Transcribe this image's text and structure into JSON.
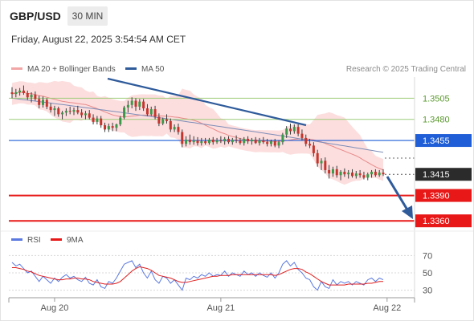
{
  "header": {
    "pair": "GBP/USD",
    "timeframe": "30 MIN",
    "datetime": "Friday, August 22, 2025 3:54:54 AM CET"
  },
  "legend_top": {
    "bollinger": "MA 20 + Bollinger Bands",
    "ma50": "MA 50",
    "credit": "Research © 2025 Trading Central"
  },
  "legend_bottom": {
    "rsi": "RSI",
    "ma9": "9MA"
  },
  "colors": {
    "up": "#3b9a4a",
    "down": "#c4352d",
    "band": "#fcd8d8",
    "ma20": "#e98a8a",
    "ma50": "#7d8db8",
    "resistance": "#9ccc78",
    "pivot": "#1f5ed6",
    "support": "#e81818",
    "arrow": "#2f5b9b",
    "rsi": "#5b79e0",
    "rsi_ma": "#e02020"
  },
  "levels": [
    {
      "price": 1.3505,
      "label": "1.3505",
      "kind": "resistance"
    },
    {
      "price": 1.348,
      "label": "1.3480",
      "kind": "resistance"
    },
    {
      "price": 1.3455,
      "label": "1.3455",
      "kind": "pivot"
    },
    {
      "price": 1.3415,
      "label": "1.3415",
      "kind": "last"
    },
    {
      "price": 1.339,
      "label": "1.3390",
      "kind": "support"
    },
    {
      "price": 1.336,
      "label": "1.3360",
      "kind": "support"
    }
  ],
  "chart_data": {
    "type": "candlestick",
    "x_axis": {
      "ticks": [
        "Aug 20",
        "Aug 21",
        "Aug 22"
      ],
      "tick_index": [
        11,
        54,
        97
      ]
    },
    "price_range": [
      1.3345,
      1.353
    ],
    "rsi_axis": {
      "ticks": [
        70,
        50,
        30
      ],
      "range": [
        25,
        75
      ]
    },
    "series": [
      {
        "name": "Price",
        "ohlc": [
          [
            1.3512,
            1.3518,
            1.3505,
            1.351
          ],
          [
            1.351,
            1.3516,
            1.3506,
            1.3512
          ],
          [
            1.3512,
            1.3517,
            1.3508,
            1.3514
          ],
          [
            1.3514,
            1.352,
            1.3509,
            1.3511
          ],
          [
            1.3511,
            1.3514,
            1.3503,
            1.3506
          ],
          [
            1.3506,
            1.3512,
            1.35,
            1.3509
          ],
          [
            1.3509,
            1.3513,
            1.3502,
            1.3504
          ],
          [
            1.3504,
            1.3508,
            1.3493,
            1.3497
          ],
          [
            1.3497,
            1.3507,
            1.3494,
            1.3503
          ],
          [
            1.3503,
            1.3505,
            1.3492,
            1.3495
          ],
          [
            1.3495,
            1.3499,
            1.3488,
            1.3491
          ],
          [
            1.3491,
            1.3496,
            1.3484,
            1.3493
          ],
          [
            1.3493,
            1.3495,
            1.3483,
            1.3486
          ],
          [
            1.3486,
            1.349,
            1.348,
            1.3488
          ],
          [
            1.3488,
            1.3493,
            1.3484,
            1.349
          ],
          [
            1.349,
            1.3495,
            1.3486,
            1.3489
          ],
          [
            1.3489,
            1.3494,
            1.3485,
            1.3491
          ],
          [
            1.3491,
            1.3496,
            1.3486,
            1.3488
          ],
          [
            1.3488,
            1.3492,
            1.3482,
            1.3485
          ],
          [
            1.3485,
            1.349,
            1.348,
            1.3487
          ],
          [
            1.3487,
            1.3491,
            1.348,
            1.3482
          ],
          [
            1.3482,
            1.3486,
            1.3474,
            1.3477
          ],
          [
            1.3477,
            1.3484,
            1.3474,
            1.3481
          ],
          [
            1.3481,
            1.3484,
            1.347,
            1.3473
          ],
          [
            1.3473,
            1.3476,
            1.3465,
            1.3468
          ],
          [
            1.3468,
            1.3475,
            1.3465,
            1.3472
          ],
          [
            1.3472,
            1.3476,
            1.3466,
            1.347
          ],
          [
            1.347,
            1.3475,
            1.3466,
            1.3474
          ],
          [
            1.3474,
            1.3484,
            1.3472,
            1.3482
          ],
          [
            1.3482,
            1.3496,
            1.348,
            1.3494
          ],
          [
            1.3494,
            1.3502,
            1.3488,
            1.3497
          ],
          [
            1.3497,
            1.3506,
            1.3493,
            1.3502
          ],
          [
            1.3502,
            1.3505,
            1.349,
            1.3495
          ],
          [
            1.3495,
            1.3504,
            1.3491,
            1.3501
          ],
          [
            1.3501,
            1.3504,
            1.349,
            1.3493
          ],
          [
            1.3493,
            1.3498,
            1.3484,
            1.3486
          ],
          [
            1.3486,
            1.3495,
            1.3484,
            1.3492
          ],
          [
            1.3492,
            1.3496,
            1.348,
            1.3483
          ],
          [
            1.3483,
            1.3487,
            1.3472,
            1.3475
          ],
          [
            1.3475,
            1.3482,
            1.3473,
            1.348
          ],
          [
            1.348,
            1.3486,
            1.3475,
            1.3478
          ],
          [
            1.3478,
            1.3481,
            1.3465,
            1.3468
          ],
          [
            1.3468,
            1.3474,
            1.3465,
            1.3471
          ],
          [
            1.3471,
            1.3475,
            1.3462,
            1.3465
          ],
          [
            1.3465,
            1.3468,
            1.3447,
            1.3451
          ],
          [
            1.3451,
            1.346,
            1.3448,
            1.3456
          ],
          [
            1.3456,
            1.3462,
            1.345,
            1.3453
          ],
          [
            1.3453,
            1.346,
            1.345,
            1.3455
          ],
          [
            1.3455,
            1.3459,
            1.3449,
            1.3452
          ],
          [
            1.3452,
            1.3458,
            1.3449,
            1.3454
          ],
          [
            1.3454,
            1.3458,
            1.345,
            1.3452
          ],
          [
            1.3452,
            1.3458,
            1.345,
            1.3456
          ],
          [
            1.3456,
            1.3459,
            1.345,
            1.3453
          ],
          [
            1.3453,
            1.3458,
            1.3451,
            1.3455
          ],
          [
            1.3455,
            1.346,
            1.3452,
            1.3454
          ],
          [
            1.3454,
            1.3459,
            1.345,
            1.3457
          ],
          [
            1.3457,
            1.346,
            1.3451,
            1.3453
          ],
          [
            1.3453,
            1.3458,
            1.345,
            1.3456
          ],
          [
            1.3456,
            1.3461,
            1.3452,
            1.3455
          ],
          [
            1.3455,
            1.3458,
            1.345,
            1.3452
          ],
          [
            1.3452,
            1.3459,
            1.3449,
            1.3457
          ],
          [
            1.3457,
            1.346,
            1.3451,
            1.3454
          ],
          [
            1.3454,
            1.3458,
            1.345,
            1.3456
          ],
          [
            1.3456,
            1.3459,
            1.3451,
            1.3452
          ],
          [
            1.3452,
            1.3458,
            1.3449,
            1.3455
          ],
          [
            1.3455,
            1.3459,
            1.3451,
            1.3453
          ],
          [
            1.3453,
            1.3457,
            1.3448,
            1.3451
          ],
          [
            1.3451,
            1.3456,
            1.3448,
            1.3454
          ],
          [
            1.3454,
            1.3457,
            1.3447,
            1.3449
          ],
          [
            1.3449,
            1.3455,
            1.3446,
            1.3453
          ],
          [
            1.3453,
            1.3464,
            1.345,
            1.3462
          ],
          [
            1.3462,
            1.3472,
            1.3458,
            1.3469
          ],
          [
            1.3469,
            1.3475,
            1.3462,
            1.3466
          ],
          [
            1.3466,
            1.3474,
            1.3463,
            1.3471
          ],
          [
            1.3471,
            1.3474,
            1.346,
            1.3463
          ],
          [
            1.3463,
            1.3468,
            1.3455,
            1.3458
          ],
          [
            1.3458,
            1.3462,
            1.3448,
            1.3451
          ],
          [
            1.3451,
            1.3457,
            1.3446,
            1.3449
          ],
          [
            1.3449,
            1.3453,
            1.3436,
            1.344
          ],
          [
            1.344,
            1.3444,
            1.3424,
            1.3428
          ],
          [
            1.3428,
            1.3434,
            1.342,
            1.3431
          ],
          [
            1.3431,
            1.3435,
            1.3416,
            1.342
          ],
          [
            1.342,
            1.3426,
            1.341,
            1.3416
          ],
          [
            1.3416,
            1.3424,
            1.3412,
            1.3421
          ],
          [
            1.3421,
            1.3425,
            1.3411,
            1.3414
          ],
          [
            1.3414,
            1.342,
            1.3408,
            1.3418
          ],
          [
            1.3418,
            1.3422,
            1.3412,
            1.3415
          ],
          [
            1.3415,
            1.342,
            1.341,
            1.3417
          ],
          [
            1.3417,
            1.3421,
            1.3411,
            1.3413
          ],
          [
            1.3413,
            1.3419,
            1.341,
            1.3416
          ],
          [
            1.3416,
            1.342,
            1.3411,
            1.3414
          ],
          [
            1.3414,
            1.3418,
            1.3409,
            1.3411
          ],
          [
            1.3411,
            1.3417,
            1.3408,
            1.3415
          ],
          [
            1.3415,
            1.342,
            1.3411,
            1.3418
          ],
          [
            1.3418,
            1.3421,
            1.3412,
            1.3414
          ],
          [
            1.3414,
            1.342,
            1.3412,
            1.3417
          ],
          [
            1.3417,
            1.3421,
            1.3413,
            1.3415
          ]
        ]
      },
      {
        "name": "MA 20 + Bollinger Bands",
        "mid_first": 1.3505,
        "mid_last": 1.3419,
        "upper_width": 0.0013
      },
      {
        "name": "MA 50",
        "first": 1.3505,
        "last": 1.3441
      },
      {
        "name": "RSI",
        "values": [
          62,
          58,
          60,
          55,
          50,
          52,
          46,
          40,
          46,
          42,
          38,
          44,
          40,
          45,
          48,
          44,
          46,
          42,
          40,
          45,
          38,
          36,
          42,
          34,
          32,
          40,
          38,
          44,
          52,
          60,
          62,
          64,
          56,
          60,
          50,
          44,
          52,
          42,
          38,
          46,
          44,
          38,
          42,
          36,
          30,
          44,
          42,
          46,
          44,
          48,
          46,
          50,
          46,
          48,
          47,
          52,
          46,
          50,
          48,
          46,
          52,
          48,
          50,
          46,
          50,
          47,
          45,
          50,
          44,
          50,
          60,
          64,
          58,
          62,
          54,
          50,
          44,
          42,
          34,
          30,
          40,
          34,
          32,
          42,
          36,
          40,
          38,
          40,
          36,
          40,
          38,
          36,
          42,
          44,
          40,
          44,
          42
        ]
      },
      {
        "name": "9MA",
        "values": [
          56,
          56,
          55,
          54,
          52,
          51,
          49,
          47,
          46,
          45,
          44,
          43,
          42,
          42,
          43,
          43,
          44,
          44,
          43,
          43,
          42,
          40,
          39,
          38,
          37,
          37,
          37,
          38,
          40,
          44,
          48,
          52,
          55,
          57,
          56,
          55,
          53,
          50,
          47,
          46,
          45,
          44,
          42,
          40,
          39,
          39,
          40,
          41,
          42,
          43,
          44,
          45,
          46,
          46,
          47,
          47,
          47,
          48,
          48,
          48,
          48,
          48,
          48,
          48,
          48,
          48,
          48,
          48,
          47,
          48,
          50,
          52,
          54,
          55,
          55,
          54,
          51,
          49,
          46,
          43,
          40,
          38,
          36,
          36,
          36,
          36,
          36,
          37,
          37,
          37,
          37,
          37,
          38,
          38,
          39,
          40,
          40
        ]
      }
    ]
  }
}
